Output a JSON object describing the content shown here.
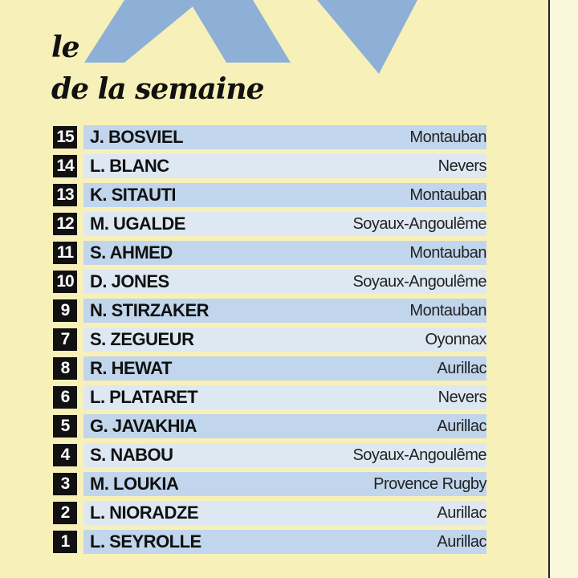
{
  "header": {
    "title_line1": "le",
    "title_line2": "de la semaine",
    "logo_text": "XV"
  },
  "colors": {
    "background": "#f7f0b8",
    "logo_blue": "#8fb0d6",
    "row_dark": "#c1d6ec",
    "row_light": "#dde8f2",
    "number_box": "#111111"
  },
  "players": [
    {
      "number": "15",
      "name": "J. BOSVIEL",
      "club": "Montauban"
    },
    {
      "number": "14",
      "name": "L. BLANC",
      "club": "Nevers"
    },
    {
      "number": "13",
      "name": "K. SITAUTI",
      "club": "Montauban"
    },
    {
      "number": "12",
      "name": "M. UGALDE",
      "club": "Soyaux-Angoulême"
    },
    {
      "number": "11",
      "name": "S. AHMED",
      "club": "Montauban"
    },
    {
      "number": "10",
      "name": "D. JONES",
      "club": "Soyaux-Angoulême"
    },
    {
      "number": "9",
      "name": "N. STIRZAKER",
      "club": "Montauban"
    },
    {
      "number": "7",
      "name": "S. ZEGUEUR",
      "club": "Oyonnax"
    },
    {
      "number": "8",
      "name": "R. HEWAT",
      "club": "Aurillac"
    },
    {
      "number": "6",
      "name": "L. PLATARET",
      "club": "Nevers"
    },
    {
      "number": "5",
      "name": "G. JAVAKHIA",
      "club": "Aurillac"
    },
    {
      "number": "4",
      "name": "S. NABOU",
      "club": "Soyaux-Angoulême"
    },
    {
      "number": "3",
      "name": "M. LOUKIA",
      "club": "Provence Rugby"
    },
    {
      "number": "2",
      "name": "L. NIORADZE",
      "club": "Aurillac"
    },
    {
      "number": "1",
      "name": "L. SEYROLLE",
      "club": "Aurillac"
    }
  ]
}
